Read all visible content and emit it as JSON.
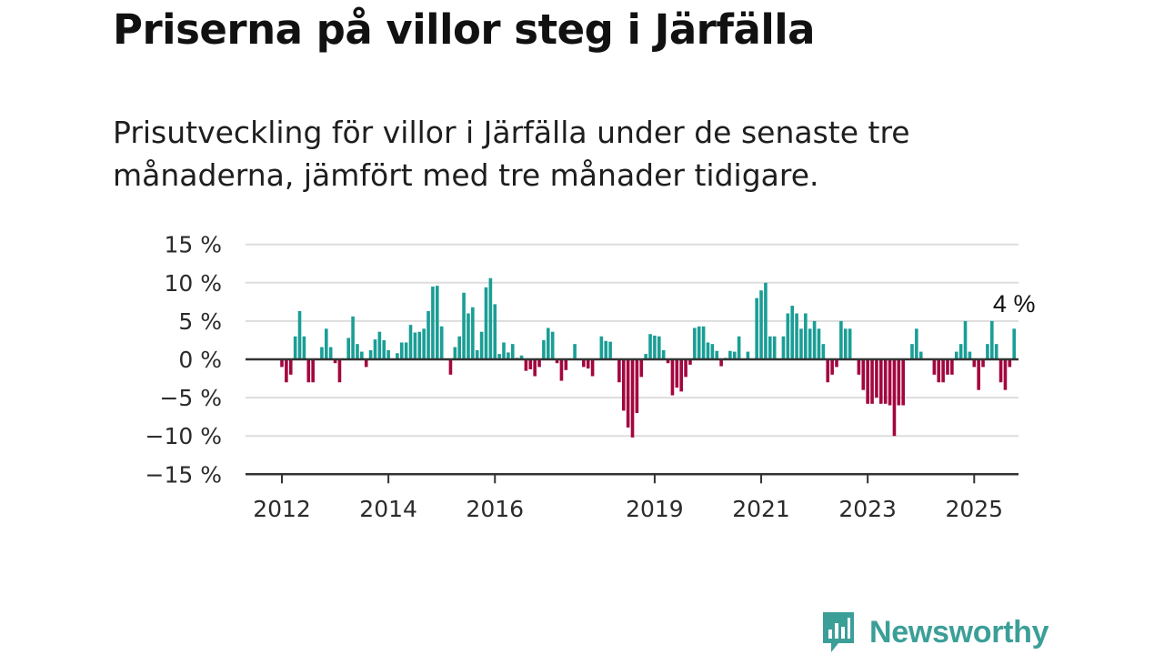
{
  "title": "Priserna på villor steg i Järfälla",
  "subtitle": "Prisutveckling för villor i Järfälla under de senaste tre månaderna, jämfört med tre månader tidigare.",
  "brand": "Newsworthy",
  "colors": {
    "positive": "#1a9e96",
    "negative": "#a3063f",
    "grid": "#dddddd",
    "axis": "#333333"
  },
  "chart_data": {
    "type": "bar",
    "title": "",
    "xlabel": "",
    "ylabel": "",
    "ylim": [
      -15,
      15
    ],
    "yticks": [
      15,
      10,
      5,
      0,
      -5,
      -10,
      -15
    ],
    "ytick_labels": [
      "15 %",
      "10 %",
      "5 %",
      "0 %",
      "−5 %",
      "−10 %",
      "−15 %"
    ],
    "xticks": [
      "2012",
      "2014",
      "2016",
      "2019",
      "2021",
      "2023",
      "2025"
    ],
    "grid": true,
    "annotation": {
      "text": "4 %",
      "value": 4,
      "at": "last bar"
    },
    "x_start": "2012-01",
    "x_end": "2025-03",
    "values": [
      -1,
      -3,
      -2,
      3,
      6.3,
      3,
      -3,
      -3,
      0,
      1.6,
      4,
      1.6,
      -0.5,
      -3,
      0,
      2.8,
      5.6,
      2,
      1,
      -1,
      1.2,
      2.6,
      3.6,
      2.5,
      1.2,
      0,
      0.8,
      2.2,
      2.2,
      4.5,
      3.5,
      3.6,
      4,
      6.3,
      9.5,
      9.6,
      4.3,
      0,
      -2,
      1.6,
      3,
      8.7,
      6,
      6.8,
      1.2,
      3.6,
      9.4,
      10.6,
      7.2,
      0.7,
      2.2,
      0.9,
      2,
      0.2,
      0.5,
      -1.5,
      -1.3,
      -2.2,
      -1,
      2.5,
      4.1,
      3.6,
      -0.5,
      -2.8,
      -1.4,
      0,
      2,
      0,
      -1,
      -1.2,
      -2.2,
      0,
      3,
      2.4,
      2.3,
      0,
      -3,
      -6.7,
      -8.9,
      -10.2,
      -7,
      -2.3,
      0.7,
      3.3,
      3.1,
      3,
      1.2,
      -0.5,
      -4.7,
      -3.7,
      -4.2,
      -2.3,
      -0.7,
      4.1,
      4.3,
      4.3,
      2.2,
      2,
      1.1,
      -0.9,
      0.2,
      1.1,
      1,
      3,
      0.1,
      1,
      0.1,
      8,
      9,
      10,
      3,
      3,
      0.1,
      3,
      6,
      7,
      6,
      4,
      6,
      4,
      5,
      4,
      2,
      -3,
      -2,
      -1,
      5,
      4,
      4,
      0.1,
      -2,
      -4,
      -5.8,
      -5.8,
      -5,
      -5.8,
      -5.8,
      -6,
      -10,
      -6,
      -6,
      0,
      2,
      4,
      1,
      0,
      0,
      -2,
      -3,
      -3,
      -2,
      -2,
      1,
      2,
      5,
      1,
      -1,
      -4,
      -1,
      2,
      5,
      2,
      -3,
      -4,
      -1,
      4
    ]
  }
}
